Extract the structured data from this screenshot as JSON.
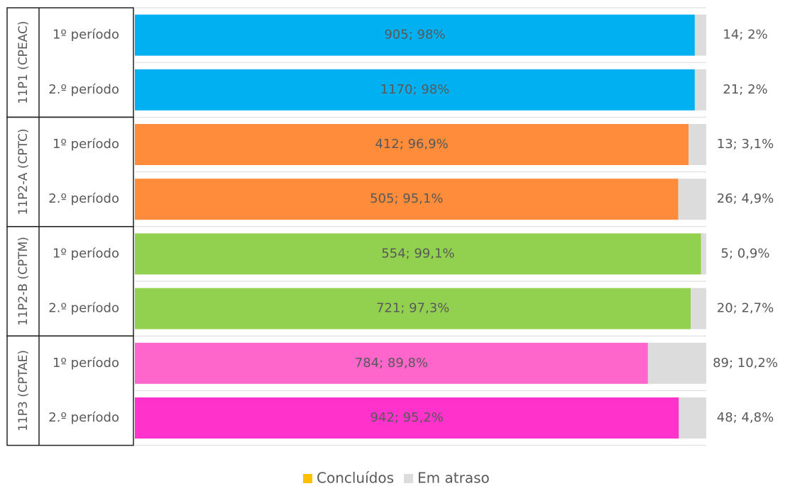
{
  "chart_data": {
    "type": "bar",
    "orientation": "horizontal",
    "stacked": true,
    "groups": [
      {
        "name": "11P1 (CPEAC)",
        "categories": [
          "1º período",
          "2.º período"
        ]
      },
      {
        "name": "11P2-A (CPTC)",
        "categories": [
          "1º período",
          "2.º período"
        ]
      },
      {
        "name": "11P2-B (CPTM)",
        "categories": [
          "1º período",
          "2.º período"
        ]
      },
      {
        "name": "11P3 (CPTAE)",
        "categories": [
          "1º período",
          "2.º período"
        ]
      }
    ],
    "series": [
      {
        "name": "Concluídos",
        "color": "#ffc000",
        "bar_colors": [
          "#00b0f0",
          "#00b0f0",
          "#ff8c3a",
          "#ff8c3a",
          "#92d050",
          "#92d050",
          "#ff66cc",
          "#ff33cc"
        ],
        "values": [
          98,
          98,
          96.9,
          95.1,
          99.1,
          97.3,
          89.8,
          95.2
        ],
        "value_labels": [
          "905; 98%",
          "1170; 98%",
          "412; 96,9%",
          "505; 95,1%",
          "554; 99,1%",
          "721; 97,3%",
          "784; 89,8%",
          "942; 95,2%"
        ]
      },
      {
        "name": "Em atraso",
        "color": "#dcdcdc",
        "values": [
          2,
          2,
          3.1,
          4.9,
          0.9,
          2.7,
          10.2,
          4.8
        ],
        "value_labels": [
          "14; 2%",
          "21; 2%",
          "13; 3,1%",
          "26; 4,9%",
          "5; 0,9%",
          "20; 2,7%",
          "89; 10,2%",
          "48; 4,8%"
        ]
      }
    ],
    "xlim": [
      0,
      100
    ],
    "legend": "bottom"
  }
}
